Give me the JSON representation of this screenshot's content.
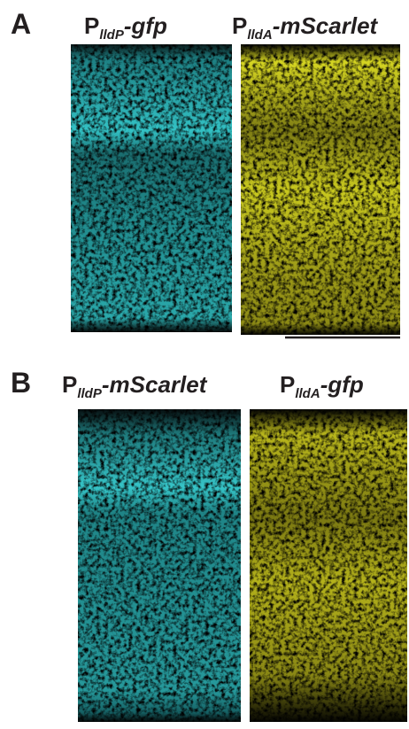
{
  "panels": [
    {
      "label": "A",
      "images": [
        {
          "promoter": "P",
          "subscript": "lldP",
          "reporter": "-gfp"
        },
        {
          "promoter": "P",
          "subscript": "lldA",
          "reporter": "-mScarlet"
        }
      ]
    },
    {
      "label": "B",
      "images": [
        {
          "promoter": "P",
          "subscript": "lldP",
          "reporter": "-mScarlet"
        },
        {
          "promoter": "P",
          "subscript": "lldA",
          "reporter": "-gfp"
        }
      ]
    }
  ]
}
